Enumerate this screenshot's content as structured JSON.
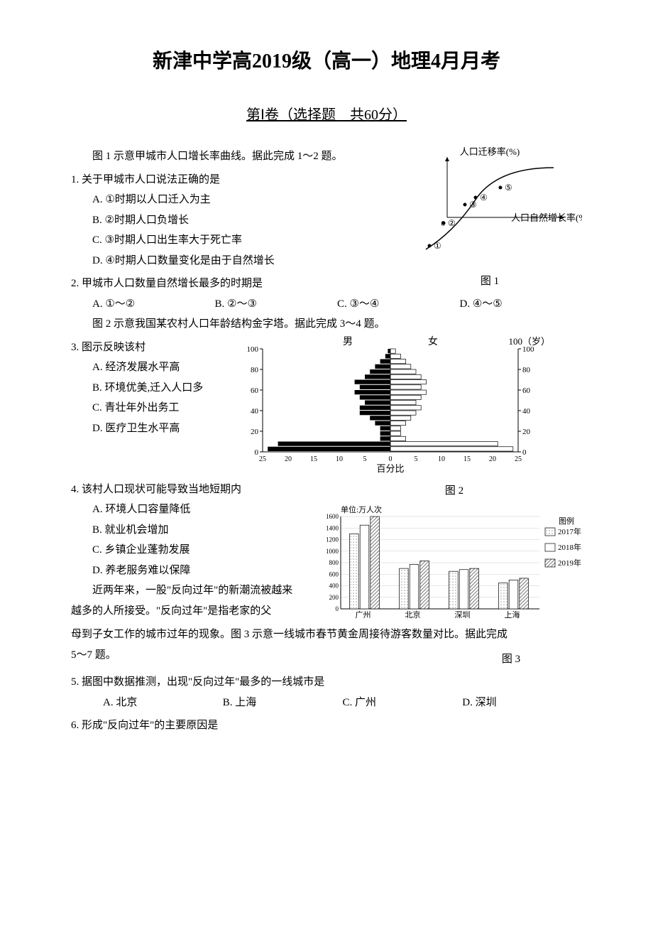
{
  "title": "新津中学高2019级（高一）地理4月月考",
  "subtitle": "第Ⅰ卷（选择题　共60分）",
  "intro1": "图 1 示意甲城市人口增长率曲线。据此完成 1～2 题。",
  "q1": {
    "stem": "1. 关于甲城市人口说法正确的是",
    "a": "A. ①时期以人口迁入为主",
    "b": "B. ②时期人口负增长",
    "c": "C. ③时期人口出生率大于死亡率",
    "d": "D. ④时期人口数量变化是由于自然增长"
  },
  "q2": {
    "stem": "2. 甲城市人口数量自然增长最多的时期是",
    "a": "A. ①～②",
    "b": "B. ②～③",
    "c": "C. ③～④",
    "d": "D. ④～⑤"
  },
  "intro2": "图 2 示意我国某农村人口年龄结构金字塔。据此完成 3～4 题。",
  "q3": {
    "stem": "3. 图示反映该村",
    "a": "A. 经济发展水平高",
    "b": "B. 环境优美,迁入人口多",
    "c": "C. 青壮年外出务工",
    "d": "D. 医疗卫生水平高"
  },
  "q4": {
    "stem": "4. 该村人口现状可能导致当地短期内",
    "a": "A. 环境人口容量降低",
    "b": "B. 就业机会增加",
    "c": "C. 乡镇企业蓬勃发展",
    "d": "D. 养老服务难以保障"
  },
  "intro3_part1": "近两年来，一股\"反向过年\"的新潮流被越来越多的人所接受。\"反向过年\"是指老家的父母到子女工作的城市过年的现象。图 3 示意一线城市春节黄金周接待游客数量对比。据此完成 5～7 题。",
  "q5": {
    "stem": "5. 据图中数据推测，出现\"反向过年\"最多的一线城市是",
    "a": "A. 北京",
    "b": "B. 上海",
    "c": "C. 广州",
    "d": "D. 深圳"
  },
  "q6": {
    "stem": "6. 形成\"反向过年\"的主要原因是"
  },
  "fig1": {
    "label": "图 1",
    "ylabel": "人口迁移率(%)",
    "xlabel": "人口自然增长率(%)",
    "points": [
      "①",
      "②",
      "③",
      "④",
      "⑤"
    ],
    "curve_color": "#000000",
    "background": "#ffffff"
  },
  "fig2": {
    "label": "图 2",
    "male_label": "男",
    "female_label": "女",
    "age_unit": "100（岁）",
    "xlabel": "百分比",
    "y_ticks": [
      0,
      20,
      40,
      60,
      80,
      100
    ],
    "y_ticks_right": [
      0,
      20,
      40,
      60,
      80,
      100
    ],
    "x_ticks_left": [
      25,
      20,
      15,
      10,
      5,
      0
    ],
    "x_ticks_right": [
      0,
      5,
      10,
      15,
      20,
      25
    ],
    "male_values": [
      24,
      22,
      2,
      2,
      2,
      3,
      4,
      6,
      6,
      5,
      6,
      7,
      6,
      7,
      5,
      4,
      3,
      2,
      1,
      0.5
    ],
    "female_values": [
      24,
      21,
      3,
      2,
      2,
      3,
      4,
      5,
      6,
      5,
      6,
      7,
      6,
      7,
      6,
      5,
      4,
      3,
      2,
      1
    ],
    "male_color": "#000000",
    "female_outline": "#000000",
    "female_fill": "#ffffff",
    "background": "#ffffff"
  },
  "fig3": {
    "label": "图 3",
    "y_unit": "单位:万人次",
    "y_ticks": [
      0,
      200,
      400,
      600,
      800,
      1000,
      1200,
      1400,
      1600
    ],
    "categories": [
      "广州",
      "北京",
      "深圳",
      "上海"
    ],
    "series_2017": [
      1300,
      700,
      650,
      450
    ],
    "series_2018": [
      1450,
      770,
      680,
      500
    ],
    "series_2019": [
      1600,
      830,
      700,
      530
    ],
    "legend_title": "图例",
    "legend_2017": "2017年",
    "legend_2018": "2018年",
    "legend_2019": "2019年",
    "color_dots": "#9a9a9a",
    "color_white": "#ffffff",
    "color_hatch": "#7a7a7a",
    "outline": "#000000",
    "grid_color": "#cccccc",
    "background": "#ffffff"
  }
}
